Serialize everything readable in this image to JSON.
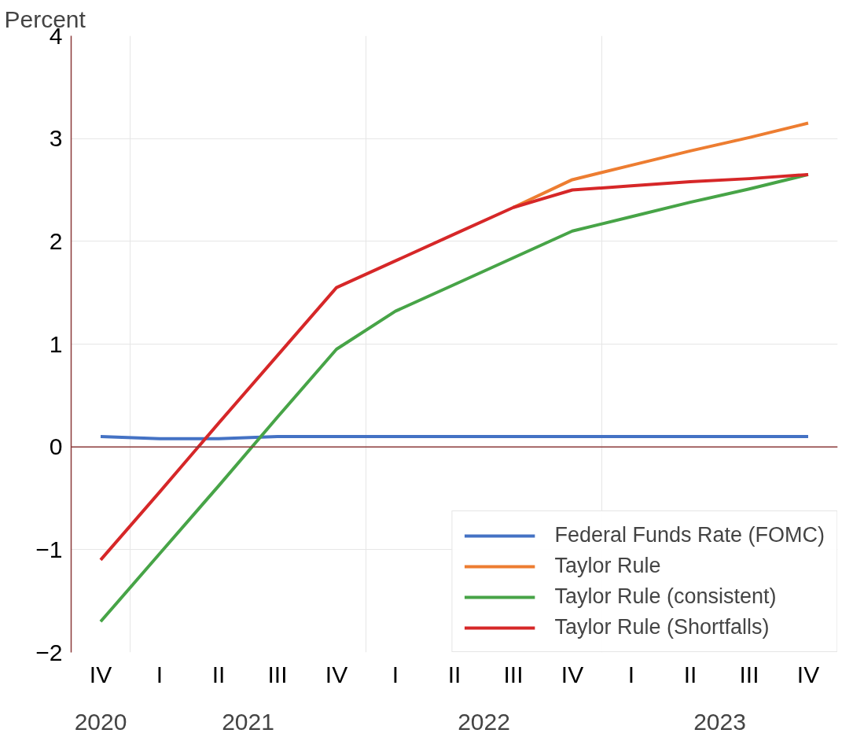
{
  "chart_data": {
    "type": "line",
    "ylabel": "Percent",
    "categories": [
      "IV",
      "I",
      "II",
      "III",
      "IV",
      "I",
      "II",
      "III",
      "IV",
      "I",
      "II",
      "III",
      "IV"
    ],
    "annotations": [
      "2020",
      "2021",
      "2022",
      "2023"
    ],
    "series": [
      {
        "name": "Federal Funds Rate (FOMC)",
        "color": "#4472c4",
        "values": [
          0.1,
          0.08,
          0.08,
          0.1,
          0.1,
          0.1,
          0.1,
          0.1,
          0.1,
          0.1,
          0.1,
          0.1,
          0.1
        ]
      },
      {
        "name": "Taylor Rule",
        "color": "#ed7d31",
        "values": [
          null,
          null,
          null,
          null,
          null,
          null,
          null,
          2.33,
          2.6,
          2.74,
          2.88,
          3.01,
          3.15
        ]
      },
      {
        "name": "Taylor Rule (consistent)",
        "color": "#47a447",
        "values": [
          -1.7,
          -1.04,
          -0.38,
          0.29,
          0.95,
          1.32,
          1.58,
          1.84,
          2.1,
          2.24,
          2.38,
          2.51,
          2.65
        ]
      },
      {
        "name": "Taylor Rule (Shortfalls)",
        "color": "#d62728",
        "values": [
          -1.1,
          -0.44,
          0.23,
          0.89,
          1.55,
          1.81,
          2.07,
          2.33,
          2.5,
          2.54,
          2.58,
          2.61,
          2.65
        ]
      }
    ],
    "ylim": [
      -2,
      4
    ],
    "yticks": [
      -2,
      -1,
      0,
      1,
      2,
      3,
      4
    ],
    "ref_lines": [
      {
        "axis": "y",
        "value": 0,
        "color": "#8b3a3a"
      }
    ],
    "grid": true,
    "legend": "bottom right",
    "line_style": "solid",
    "marker": "none"
  }
}
